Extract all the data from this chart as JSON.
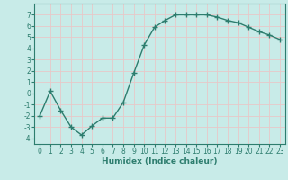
{
  "x": [
    0,
    1,
    2,
    3,
    4,
    5,
    6,
    7,
    8,
    9,
    10,
    11,
    12,
    13,
    14,
    15,
    16,
    17,
    18,
    19,
    20,
    21,
    22,
    23
  ],
  "y": [
    -2.0,
    0.2,
    -1.5,
    -3.0,
    -3.7,
    -2.9,
    -2.2,
    -2.2,
    -0.8,
    1.8,
    4.3,
    5.9,
    6.5,
    7.0,
    7.0,
    7.0,
    7.0,
    6.8,
    6.5,
    6.3,
    5.9,
    5.5,
    5.2,
    4.8
  ],
  "line_color": "#2d7d6e",
  "bg_color": "#c8ebe8",
  "grid_color": "#e8c8c8",
  "xlabel": "Humidex (Indice chaleur)",
  "ylim": [
    -4.5,
    8.0
  ],
  "xlim": [
    -0.5,
    23.5
  ],
  "yticks": [
    -4,
    -3,
    -2,
    -1,
    0,
    1,
    2,
    3,
    4,
    5,
    6,
    7
  ],
  "xticks": [
    0,
    1,
    2,
    3,
    4,
    5,
    6,
    7,
    8,
    9,
    10,
    11,
    12,
    13,
    14,
    15,
    16,
    17,
    18,
    19,
    20,
    21,
    22,
    23
  ],
  "marker": "+",
  "marker_size": 4.0,
  "line_width": 1.0,
  "xlabel_fontsize": 6.5,
  "tick_fontsize": 5.5,
  "font_color": "#2d7d6e"
}
